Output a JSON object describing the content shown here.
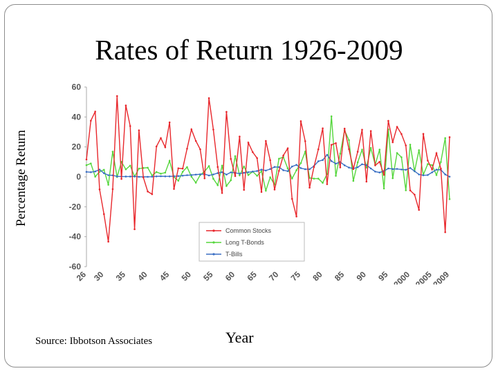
{
  "slide": {
    "title": "Rates of Return 1926-2009",
    "source": "Source: Ibbotson Associates"
  },
  "chart_data": {
    "type": "line",
    "xlabel": "Year",
    "ylabel": "Percentage Return",
    "xlim": [
      1926,
      2009
    ],
    "ylim": [
      -60,
      60
    ],
    "y_ticks": [
      "60",
      "40",
      "20",
      "0",
      "-20",
      "-40",
      "-60"
    ],
    "x_ticks": [
      "26",
      "30",
      "35",
      "40",
      "45",
      "50",
      "55",
      "60",
      "65",
      "70",
      "75",
      "80",
      "85",
      "90",
      "95",
      "2000",
      "2005",
      "2009"
    ],
    "x_tick_years": [
      1926,
      1930,
      1935,
      1940,
      1945,
      1950,
      1955,
      1960,
      1965,
      1970,
      1975,
      1980,
      1985,
      1990,
      1995,
      2000,
      2005,
      2009
    ],
    "grid": false,
    "legend_position": "bottom-right",
    "x": [
      1926,
      1927,
      1928,
      1929,
      1930,
      1931,
      1932,
      1933,
      1934,
      1935,
      1936,
      1937,
      1938,
      1939,
      1940,
      1941,
      1942,
      1943,
      1944,
      1945,
      1946,
      1947,
      1948,
      1949,
      1950,
      1951,
      1952,
      1953,
      1954,
      1955,
      1956,
      1957,
      1958,
      1959,
      1960,
      1961,
      1962,
      1963,
      1964,
      1965,
      1966,
      1967,
      1968,
      1969,
      1970,
      1971,
      1972,
      1973,
      1974,
      1975,
      1976,
      1977,
      1978,
      1979,
      1980,
      1981,
      1982,
      1983,
      1984,
      1985,
      1986,
      1987,
      1988,
      1989,
      1990,
      1991,
      1992,
      1993,
      1994,
      1995,
      1996,
      1997,
      1998,
      1999,
      2000,
      2001,
      2002,
      2003,
      2004,
      2005,
      2006,
      2007,
      2008,
      2009
    ],
    "series": [
      {
        "name": "Common Stocks",
        "color": "#e8262b",
        "values": [
          11.6,
          37.5,
          43.6,
          -8.4,
          -24.9,
          -43.3,
          -8.2,
          54.0,
          -1.4,
          47.7,
          33.9,
          -35.0,
          31.1,
          -0.4,
          -9.8,
          -11.6,
          20.3,
          25.9,
          19.8,
          36.4,
          -8.1,
          5.7,
          5.5,
          18.8,
          31.7,
          24.0,
          18.4,
          -1.0,
          52.6,
          31.6,
          6.6,
          -10.8,
          43.4,
          12.0,
          0.5,
          26.9,
          -8.7,
          22.8,
          16.5,
          12.5,
          -10.1,
          24.0,
          11.1,
          -8.5,
          4.0,
          14.3,
          19.0,
          -14.7,
          -26.5,
          37.2,
          23.8,
          -7.2,
          6.6,
          18.4,
          32.4,
          -4.9,
          21.4,
          22.5,
          6.3,
          32.2,
          18.5,
          5.2,
          16.8,
          31.5,
          -3.2,
          30.6,
          7.7,
          10.0,
          1.3,
          37.4,
          23.1,
          33.4,
          28.6,
          21.0,
          -9.1,
          -11.9,
          -22.1,
          28.7,
          10.9,
          4.9,
          15.8,
          5.5,
          -37.0,
          26.5
        ]
      },
      {
        "name": "Long T-Bonds",
        "color": "#55d63c",
        "values": [
          7.8,
          8.9,
          0.1,
          3.4,
          4.7,
          -5.3,
          16.8,
          -0.1,
          10.0,
          5.0,
          7.5,
          0.2,
          5.5,
          5.9,
          6.1,
          0.9,
          3.2,
          2.1,
          2.8,
          10.7,
          -0.1,
          -2.6,
          3.4,
          6.5,
          0.1,
          -3.9,
          1.2,
          3.6,
          7.2,
          -1.3,
          -5.6,
          7.5,
          -6.1,
          -2.3,
          13.8,
          1.0,
          6.9,
          1.2,
          3.5,
          0.7,
          3.7,
          -9.2,
          -0.3,
          -5.1,
          12.1,
          13.2,
          5.7,
          -1.1,
          4.4,
          9.2,
          16.8,
          -0.7,
          -1.2,
          -1.2,
          -4.0,
          1.9,
          40.4,
          0.7,
          15.5,
          31.0,
          24.5,
          -2.7,
          9.7,
          18.1,
          6.2,
          19.3,
          8.1,
          18.2,
          -7.8,
          31.7,
          -0.9,
          15.9,
          13.1,
          -9.0,
          21.5,
          3.7,
          17.8,
          1.4,
          8.5,
          7.8,
          1.2,
          9.9,
          25.9,
          -14.9
        ]
      },
      {
        "name": "T-Bills",
        "color": "#3a6fc4",
        "values": [
          3.3,
          3.1,
          3.6,
          4.8,
          2.4,
          1.1,
          1.0,
          0.3,
          0.2,
          0.2,
          0.2,
          0.3,
          0.0,
          0.0,
          0.0,
          0.1,
          0.3,
          0.4,
          0.3,
          0.3,
          0.4,
          0.5,
          0.8,
          1.1,
          1.2,
          1.5,
          1.7,
          1.8,
          0.9,
          1.6,
          2.5,
          3.1,
          1.5,
          3.0,
          2.7,
          2.1,
          2.7,
          3.1,
          3.5,
          3.9,
          4.8,
          4.2,
          5.2,
          6.6,
          6.5,
          4.4,
          3.8,
          6.9,
          8.0,
          5.8,
          5.1,
          5.1,
          7.2,
          10.4,
          11.2,
          14.7,
          10.5,
          8.8,
          9.9,
          7.7,
          6.2,
          5.5,
          6.4,
          8.4,
          7.8,
          5.6,
          3.5,
          2.9,
          3.9,
          5.6,
          5.2,
          5.3,
          4.9,
          4.7,
          5.9,
          3.8,
          1.6,
          1.0,
          1.2,
          3.0,
          4.8,
          4.7,
          1.6,
          0.1
        ]
      }
    ]
  }
}
